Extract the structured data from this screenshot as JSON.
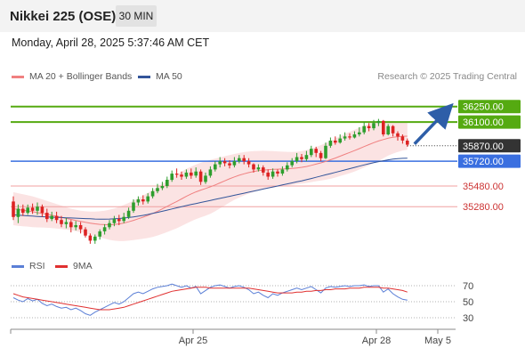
{
  "header": {
    "title": "Nikkei 225 (OSE)",
    "timeframe": "30 MIN"
  },
  "datetime": "Monday, April 28, 2025 5:37:46 AM CET",
  "legend": {
    "ma20_label": "MA 20 + Bollinger Bands",
    "ma50_label": "MA 50",
    "credit": "Research © 2025 Trading Central"
  },
  "rsi_legend": {
    "rsi_label": "RSI",
    "ma9_label": "9MA"
  },
  "colors": {
    "ma20": "#f08080",
    "ma50": "#33559a",
    "bollinger_fill": "#fbe3e3",
    "bull_candle": "#2e9e2e",
    "bear_candle": "#dd2222",
    "resistance": "#55aa11",
    "support": "#3a6fe0",
    "secondary_support": "#f0a0a0",
    "support_text": "#cc3333",
    "last_price": "#333333",
    "arrow": "#2e5ea8",
    "rsi": "#5b7fd6",
    "rsi_ma": "#e03030"
  },
  "chart_data": [
    {
      "type": "candlestick",
      "title": "Nikkei 225 (OSE)",
      "timeframe": "30 MIN",
      "x_ticks": [
        "Apr 25",
        "Apr 28",
        "May 5"
      ],
      "ylim": [
        34850,
        36420
      ],
      "levels": [
        {
          "value": 36250,
          "label": "36250.00",
          "kind": "resistance"
        },
        {
          "value": 36100,
          "label": "36100.00",
          "kind": "resistance"
        },
        {
          "value": 35870,
          "label": "35870.00",
          "kind": "last"
        },
        {
          "value": 35720,
          "label": "35720.00",
          "kind": "pivot"
        },
        {
          "value": 35480,
          "label": "35480.00",
          "kind": "support"
        },
        {
          "value": 35280,
          "label": "35280.00",
          "kind": "support"
        }
      ],
      "forecast_arrow": {
        "from": 35870,
        "to": 36230
      },
      "candles": [
        [
          35330,
          35180,
          35380,
          35150
        ],
        [
          35180,
          35260,
          35300,
          35120
        ],
        [
          35260,
          35220,
          35300,
          35190
        ],
        [
          35220,
          35270,
          35300,
          35200
        ],
        [
          35270,
          35240,
          35310,
          35210
        ],
        [
          35240,
          35280,
          35320,
          35200
        ],
        [
          35280,
          35220,
          35300,
          35180
        ],
        [
          35220,
          35160,
          35260,
          35130
        ],
        [
          35160,
          35190,
          35230,
          35140
        ],
        [
          35190,
          35150,
          35230,
          35120
        ],
        [
          35150,
          35110,
          35190,
          35080
        ],
        [
          35110,
          35130,
          35170,
          35070
        ],
        [
          35130,
          35080,
          35150,
          35030
        ],
        [
          35080,
          35100,
          35140,
          35050
        ],
        [
          35100,
          35060,
          35130,
          35020
        ],
        [
          35060,
          35000,
          35080,
          34980
        ],
        [
          35000,
          34950,
          35020,
          34920
        ],
        [
          34950,
          34990,
          35010,
          34920
        ],
        [
          34990,
          35040,
          35060,
          34960
        ],
        [
          35040,
          35080,
          35110,
          35010
        ],
        [
          35080,
          35120,
          35150,
          35060
        ],
        [
          35120,
          35160,
          35190,
          35090
        ],
        [
          35160,
          35140,
          35200,
          35100
        ],
        [
          35140,
          35180,
          35220,
          35120
        ],
        [
          35180,
          35240,
          35270,
          35160
        ],
        [
          35240,
          35320,
          35350,
          35220
        ],
        [
          35320,
          35350,
          35380,
          35290
        ],
        [
          35350,
          35330,
          35390,
          35300
        ],
        [
          35330,
          35380,
          35410,
          35310
        ],
        [
          35380,
          35430,
          35460,
          35360
        ],
        [
          35430,
          35460,
          35500,
          35410
        ],
        [
          35460,
          35480,
          35520,
          35440
        ],
        [
          35480,
          35540,
          35570,
          35460
        ],
        [
          35540,
          35600,
          35630,
          35520
        ],
        [
          35600,
          35590,
          35650,
          35560
        ],
        [
          35590,
          35570,
          35620,
          35540
        ],
        [
          35570,
          35610,
          35640,
          35550
        ],
        [
          35610,
          35580,
          35650,
          35550
        ],
        [
          35580,
          35620,
          35660,
          35560
        ],
        [
          35620,
          35520,
          35640,
          35490
        ],
        [
          35520,
          35580,
          35610,
          35500
        ],
        [
          35580,
          35640,
          35670,
          35560
        ],
        [
          35640,
          35690,
          35720,
          35620
        ],
        [
          35690,
          35720,
          35760,
          35660
        ],
        [
          35720,
          35700,
          35750,
          35670
        ],
        [
          35700,
          35680,
          35730,
          35650
        ],
        [
          35680,
          35720,
          35760,
          35660
        ],
        [
          35720,
          35750,
          35780,
          35700
        ],
        [
          35750,
          35720,
          35780,
          35690
        ],
        [
          35720,
          35690,
          35750,
          35660
        ],
        [
          35690,
          35640,
          35700,
          35610
        ],
        [
          35640,
          35660,
          35690,
          35620
        ],
        [
          35660,
          35610,
          35680,
          35580
        ],
        [
          35610,
          35570,
          35640,
          35540
        ],
        [
          35570,
          35620,
          35650,
          35550
        ],
        [
          35620,
          35600,
          35640,
          35570
        ],
        [
          35600,
          35640,
          35670,
          35580
        ],
        [
          35640,
          35680,
          35710,
          35620
        ],
        [
          35680,
          35720,
          35750,
          35660
        ],
        [
          35720,
          35760,
          35800,
          35700
        ],
        [
          35760,
          35740,
          35790,
          35710
        ],
        [
          35740,
          35780,
          35820,
          35720
        ],
        [
          35780,
          35840,
          35870,
          35760
        ],
        [
          35840,
          35800,
          35860,
          35760
        ],
        [
          35800,
          35750,
          35820,
          35720
        ],
        [
          35750,
          35870,
          35900,
          35740
        ],
        [
          35870,
          35920,
          35950,
          35850
        ],
        [
          35920,
          35900,
          35960,
          35880
        ],
        [
          35900,
          35940,
          35980,
          35890
        ],
        [
          35940,
          35960,
          36000,
          35920
        ],
        [
          35960,
          35950,
          35990,
          35930
        ],
        [
          35950,
          35980,
          36010,
          35940
        ],
        [
          35980,
          36000,
          36050,
          35960
        ],
        [
          36000,
          36060,
          36100,
          35980
        ],
        [
          36060,
          36040,
          36090,
          36010
        ],
        [
          36040,
          36090,
          36120,
          36020
        ],
        [
          36090,
          36110,
          36130,
          36060
        ],
        [
          36110,
          35980,
          36120,
          35960
        ],
        [
          35980,
          36060,
          36080,
          35970
        ],
        [
          36060,
          35990,
          36070,
          35960
        ],
        [
          35990,
          35960,
          36010,
          35920
        ],
        [
          35960,
          35920,
          35980,
          35890
        ],
        [
          35920,
          35880,
          35940,
          35860
        ]
      ],
      "ma20": [
        35260,
        35252,
        35245,
        35238,
        35230,
        35222,
        35214,
        35205,
        35196,
        35186,
        35176,
        35166,
        35156,
        35146,
        35137,
        35128,
        35120,
        35113,
        35108,
        35105,
        35104,
        35106,
        35112,
        35121,
        35133,
        35147,
        35162,
        35178,
        35195,
        35214,
        35235,
        35258,
        35282,
        35306,
        35330,
        35355,
        35380,
        35403,
        35423,
        35440,
        35456,
        35472,
        35490,
        35510,
        35530,
        35550,
        35568,
        35584,
        35598,
        35610,
        35620,
        35628,
        35634,
        35638,
        35641,
        35643,
        35645,
        35647,
        35650,
        35655,
        35661,
        35669,
        35680,
        35692,
        35704,
        35718,
        35734,
        35751,
        35769,
        35787,
        35805,
        35823,
        35842,
        35862,
        35881,
        35900,
        35916,
        35930,
        35943,
        35952,
        35958,
        35962,
        35963
      ],
      "ma50": [
        35200,
        35197,
        35194,
        35191,
        35188,
        35185,
        35182,
        35180,
        35178,
        35176,
        35174,
        35172,
        35170,
        35168,
        35166,
        35164,
        35162,
        35160,
        35159,
        35159,
        35160,
        35162,
        35165,
        35169,
        35174,
        35180,
        35187,
        35195,
        35204,
        35214,
        35224,
        35235,
        35246,
        35257,
        35268,
        35279,
        35290,
        35300,
        35310,
        35320,
        35330,
        35340,
        35350,
        35360,
        35370,
        35380,
        35390,
        35400,
        35410,
        35420,
        35430,
        35440,
        35450,
        35460,
        35470,
        35480,
        35490,
        35500,
        35510,
        35520,
        35530,
        35541,
        35552,
        35564,
        35576,
        35588,
        35600,
        35612,
        35624,
        35636,
        35648,
        35660,
        35672,
        35684,
        35695,
        35706,
        35716,
        35725,
        35733,
        35740,
        35745,
        35748,
        35750
      ],
      "bollinger_upper": [
        35420,
        35410,
        35400,
        35390,
        35380,
        35365,
        35350,
        35335,
        35320,
        35305,
        35290,
        35275,
        35260,
        35250,
        35240,
        35235,
        35232,
        35232,
        35235,
        35240,
        35250,
        35262,
        35278,
        35296,
        35316,
        35338,
        35362,
        35388,
        35414,
        35442,
        35470,
        35500,
        35530,
        35560,
        35590,
        35618,
        35645,
        35668,
        35688,
        35705,
        35720,
        35733,
        35745,
        35757,
        35769,
        35780,
        35790,
        35800,
        35808,
        35814,
        35818,
        35820,
        35821,
        35820,
        35818,
        35815,
        35813,
        35811,
        35810,
        35812,
        35818,
        35828,
        35842,
        35858,
        35876,
        35896,
        35918,
        35940,
        35962,
        35984,
        36006,
        36026,
        36045,
        36064,
        36082,
        36098,
        36108,
        36112,
        36112,
        36110,
        36106,
        36100,
        36095
      ],
      "bollinger_lower": [
        35100,
        35094,
        35090,
        35086,
        35080,
        35079,
        35078,
        35075,
        35072,
        35067,
        35062,
        35057,
        35052,
        35042,
        35034,
        35021,
        35008,
        34994,
        34981,
        34970,
        34958,
        34950,
        34946,
        34946,
        34950,
        34956,
        34962,
        34968,
        34976,
        34986,
        35000,
        35016,
        35034,
        35052,
        35070,
        35092,
        35115,
        35138,
        35158,
        35175,
        35192,
        35211,
        35235,
        35263,
        35291,
        35320,
        35346,
        35368,
        35388,
        35406,
        35422,
        35436,
        35447,
        35456,
        35464,
        35471,
        35477,
        35483,
        35490,
        35498,
        35504,
        35510,
        35518,
        35526,
        35532,
        35540,
        35550,
        35562,
        35576,
        35590,
        35604,
        35620,
        35639,
        35660,
        35680,
        35702,
        35724,
        35748,
        35774,
        35794,
        35810,
        35824,
        35831
      ]
    },
    {
      "type": "line",
      "title": "RSI",
      "y_ticks": [
        70,
        50,
        30
      ],
      "ylim": [
        20,
        80
      ],
      "series": [
        {
          "name": "RSI",
          "values": [
            55,
            52,
            50,
            54,
            51,
            53,
            48,
            45,
            47,
            44,
            42,
            43,
            40,
            42,
            39,
            35,
            33,
            37,
            40,
            43,
            46,
            49,
            47,
            50,
            55,
            60,
            62,
            60,
            63,
            66,
            68,
            69,
            70,
            72,
            70,
            68,
            70,
            67,
            69,
            60,
            64,
            68,
            70,
            71,
            69,
            67,
            69,
            70,
            68,
            65,
            60,
            62,
            58,
            55,
            60,
            58,
            61,
            63,
            65,
            67,
            65,
            67,
            69,
            65,
            61,
            67,
            69,
            68,
            69,
            70,
            69,
            70,
            70,
            71,
            69,
            70,
            70,
            62,
            66,
            60,
            56,
            53,
            52
          ]
        },
        {
          "name": "9MA",
          "values": [
            60,
            58,
            56,
            55,
            54,
            53,
            52,
            51,
            50,
            49,
            48,
            47,
            46,
            45,
            44,
            43,
            42,
            41,
            40,
            40,
            40,
            41,
            42,
            43,
            45,
            47,
            49,
            51,
            53,
            55,
            57,
            59,
            61,
            63,
            64,
            65,
            66,
            67,
            68,
            68,
            68,
            67,
            67,
            67,
            67,
            67,
            67,
            67,
            67,
            67,
            66,
            65,
            64,
            63,
            62,
            61,
            61,
            61,
            61,
            62,
            62,
            63,
            63,
            64,
            64,
            65,
            65,
            66,
            66,
            66,
            67,
            67,
            67,
            68,
            68,
            68,
            68,
            67,
            67,
            66,
            65,
            64,
            62
          ]
        }
      ]
    }
  ]
}
